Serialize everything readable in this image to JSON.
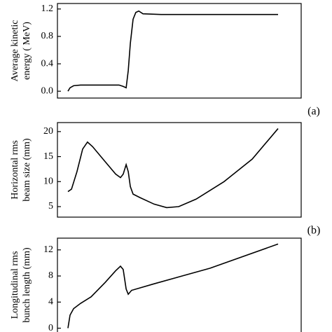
{
  "chart_data": [
    {
      "type": "line",
      "ylabel": [
        "Average kinetic",
        "energy ( MeV)"
      ],
      "label": "(a)",
      "x": [
        5,
        6,
        7.7,
        11,
        19.3,
        29.3,
        31.3,
        32.7,
        33.7,
        34.7,
        36,
        37.3,
        38.7,
        40.7,
        49.3,
        72.7,
        105
      ],
      "series": [
        {
          "color": "#000000",
          "values": [
            0.0,
            0.05,
            0.08,
            0.09,
            0.09,
            0.09,
            0.07,
            0.05,
            0.3,
            0.7,
            1.05,
            1.15,
            1.17,
            1.13,
            1.12,
            1.12,
            1.12
          ]
        }
      ],
      "xlim": [
        0,
        116
      ],
      "ylim": [
        -0.1,
        1.28
      ],
      "yticks": [
        {
          "value": 0,
          "label": "0.0"
        },
        0.4,
        0.8,
        1.2
      ]
    },
    {
      "type": "line",
      "ylabel": [
        "Horizontal rms",
        "beam size (mm)"
      ],
      "label": "(b)",
      "x": [
        5,
        6.7,
        9.3,
        12,
        14.3,
        16.7,
        22.7,
        27.7,
        30,
        31.3,
        32.7,
        33.7,
        34.7,
        36,
        39.3,
        46,
        52,
        57.7,
        66,
        79.3,
        92.7,
        105
      ],
      "series": [
        {
          "color": "#000000",
          "values": [
            8,
            8.5,
            12,
            16.5,
            17.9,
            17,
            14,
            11.5,
            10.8,
            11.5,
            13.4,
            12,
            9,
            7.5,
            6.8,
            5.5,
            4.8,
            5,
            6.5,
            10,
            14.5,
            20.6
          ]
        }
      ],
      "xlim": [
        0,
        116
      ],
      "ylim": [
        2.9,
        21.8
      ],
      "yticks": [
        5,
        10,
        15,
        20
      ]
    },
    {
      "type": "line",
      "ylabel": [
        "Longitudinal rms",
        "bunch length (mm)"
      ],
      "x": [
        5,
        6,
        7.7,
        11,
        16,
        22.7,
        27.7,
        30,
        31.3,
        32.7,
        33.7,
        35.3,
        46,
        72.7,
        105
      ],
      "series": [
        {
          "color": "#000000",
          "values": [
            0,
            2,
            3,
            3.8,
            4.8,
            7,
            8.8,
            9.5,
            9,
            6,
            5.2,
            5.8,
            6.8,
            9.2,
            12.9
          ]
        }
      ],
      "xlim": [
        0,
        116
      ],
      "ylim": [
        -0.8,
        13.8
      ],
      "yticks": [
        0,
        4,
        8,
        12
      ]
    }
  ]
}
